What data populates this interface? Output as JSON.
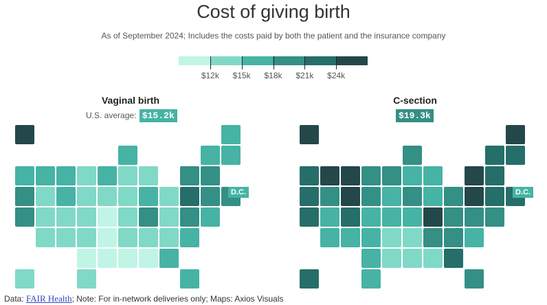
{
  "title": "Cost of giving birth",
  "subtitle": "As of September 2024; Includes the costs paid by both the patient and the insurance company",
  "chart_data": {
    "type": "choropleth",
    "legend": {
      "colors": [
        "#c0f5e6",
        "#80d9c6",
        "#46b3a5",
        "#348f85",
        "#266e69",
        "#24474a"
      ],
      "ticks": [
        "$12k",
        "$15k",
        "$18k",
        "$21k",
        "$24k"
      ]
    },
    "bucket_thresholds_k": [
      12,
      15,
      18,
      21,
      24
    ],
    "maps": [
      {
        "title": "Vaginal birth",
        "avg_label": "U.S. average:",
        "avg_value": "$15.2k",
        "dc_label": "D.C."
      },
      {
        "title": "C-section",
        "avg_value": "$19.3k",
        "dc_label": "D.C."
      }
    ],
    "states_bucket_vaginal_csection": {
      "AK": [
        5,
        5
      ],
      "ME": [
        2,
        5
      ],
      "WI": [
        2,
        3
      ],
      "VT": [
        2,
        4
      ],
      "NH": [
        2,
        4
      ],
      "WA": [
        2,
        4
      ],
      "ID": [
        2,
        5
      ],
      "MT": [
        2,
        5
      ],
      "ND": [
        1,
        3
      ],
      "MN": [
        2,
        3
      ],
      "IL": [
        1,
        2
      ],
      "MI": [
        1,
        2
      ],
      "NY": [
        3,
        5
      ],
      "MA": [
        3,
        4
      ],
      "OR": [
        3,
        4
      ],
      "NV": [
        1,
        3
      ],
      "WY": [
        2,
        5
      ],
      "SD": [
        1,
        3
      ],
      "IA": [
        1,
        2
      ],
      "IN": [
        1,
        3
      ],
      "OH": [
        2,
        2
      ],
      "PA": [
        1,
        3
      ],
      "NJ": [
        4,
        5
      ],
      "CT": [
        3,
        4
      ],
      "RI": [
        3,
        4
      ],
      "CA": [
        3,
        4
      ],
      "UT": [
        1,
        2
      ],
      "CO": [
        1,
        4
      ],
      "NE": [
        1,
        2
      ],
      "MO": [
        0,
        2
      ],
      "KY": [
        1,
        2
      ],
      "WV": [
        3,
        5
      ],
      "VA": [
        1,
        3
      ],
      "MD": [
        3,
        3
      ],
      "DE": [
        2,
        3
      ],
      "AZ": [
        1,
        2
      ],
      "NM": [
        1,
        2
      ],
      "KS": [
        1,
        2
      ],
      "AR": [
        0,
        1
      ],
      "TN": [
        1,
        1
      ],
      "NC": [
        1,
        3
      ],
      "SC": [
        1,
        3
      ],
      "DC": [
        2,
        2
      ],
      "OK": [
        0,
        2
      ],
      "LA": [
        0,
        1
      ],
      "MS": [
        0,
        1
      ],
      "AL": [
        0,
        1
      ],
      "GA": [
        2,
        4
      ],
      "HI": [
        1,
        4
      ],
      "TX": [
        1,
        2
      ],
      "FL": [
        2,
        3
      ]
    }
  },
  "footer": {
    "prefix": "Data: ",
    "link": "FAIR Health",
    "suffix": "; Note: For in-network deliveries only; Maps: Axios Visuals"
  }
}
